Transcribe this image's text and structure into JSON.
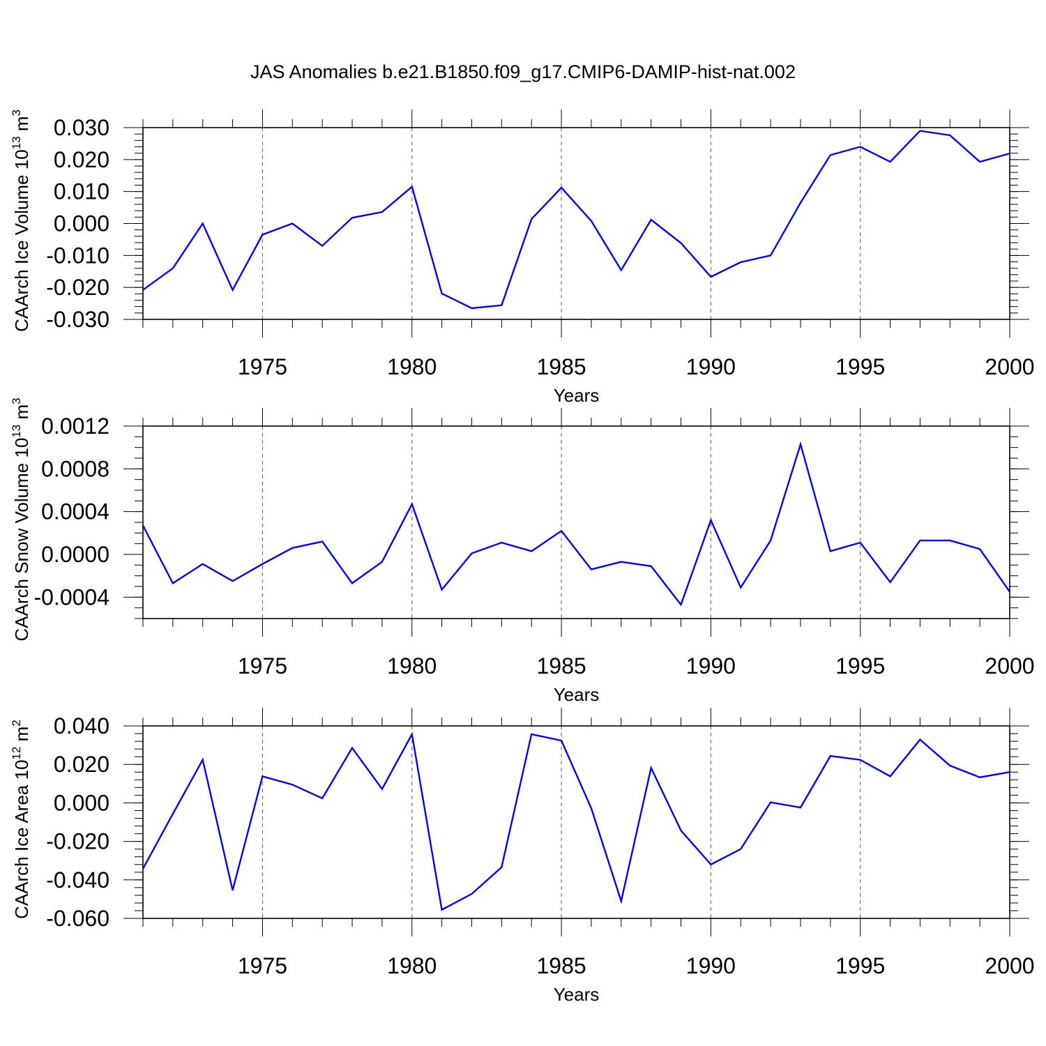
{
  "title": "JAS Anomalies b.e21.B1850.f09_g17.CMIP6-DAMIP-hist-nat.002",
  "line_color": "#0000ff",
  "chart_data": [
    {
      "type": "line",
      "id": "ice-volume",
      "ylabel_text": "CAArch Ice Volume 10",
      "ylabel_exp": "13",
      "ylabel_unit": " m",
      "ylabel_unit_exp": "3",
      "xlabel": "Years",
      "xlim": [
        1971,
        2000
      ],
      "ylim": [
        -0.03,
        0.03
      ],
      "xticks": [
        1975,
        1980,
        1985,
        1990,
        1995,
        2000
      ],
      "xtick_labels": [
        "1975",
        "1980",
        "1985",
        "1990",
        "1995",
        "2000"
      ],
      "yticks": [
        -0.03,
        -0.02,
        -0.01,
        0.0,
        0.01,
        0.02,
        0.03
      ],
      "ytick_labels": [
        "-0.030",
        "-0.020",
        "-0.010",
        "0.000",
        "0.010",
        "0.020",
        "0.030"
      ],
      "y_minor_step": 0.002,
      "x": [
        1971,
        1972,
        1973,
        1974,
        1975,
        1976,
        1977,
        1978,
        1979,
        1980,
        1981,
        1982,
        1983,
        1984,
        1985,
        1986,
        1987,
        1988,
        1989,
        1990,
        1991,
        1992,
        1993,
        1994,
        1995,
        1996,
        1997,
        1998,
        1999,
        2000
      ],
      "series": [
        {
          "name": "Ice Volume",
          "values": [
            -0.0208,
            -0.014,
            0.0,
            -0.0208,
            -0.0035,
            0.0,
            -0.007,
            0.0018,
            0.0036,
            0.0115,
            -0.0219,
            -0.0265,
            -0.0256,
            0.0014,
            0.0112,
            0.0008,
            -0.0146,
            0.0012,
            -0.0061,
            -0.0167,
            -0.0121,
            -0.01,
            0.0065,
            0.0214,
            0.024,
            0.0193,
            0.029,
            0.0276,
            0.0193,
            0.0219
          ]
        }
      ]
    },
    {
      "type": "line",
      "id": "snow-volume",
      "ylabel_text": "CAArch Snow Volume 10",
      "ylabel_exp": "13",
      "ylabel_unit": " m",
      "ylabel_unit_exp": "3",
      "xlabel": "Years",
      "xlim": [
        1971,
        2000
      ],
      "ylim": [
        -0.0006,
        0.0012
      ],
      "xticks": [
        1975,
        1980,
        1985,
        1990,
        1995,
        2000
      ],
      "xtick_labels": [
        "1975",
        "1980",
        "1985",
        "1990",
        "1995",
        "2000"
      ],
      "yticks": [
        -0.0004,
        0.0,
        0.0004,
        0.0008,
        0.0012
      ],
      "ytick_labels": [
        "-0.0004",
        "0.0000",
        "0.0004",
        "0.0008",
        "0.0012"
      ],
      "y_minor_step": 0.0001,
      "x": [
        1971,
        1972,
        1973,
        1974,
        1975,
        1976,
        1977,
        1978,
        1979,
        1980,
        1981,
        1982,
        1983,
        1984,
        1985,
        1986,
        1987,
        1988,
        1989,
        1990,
        1991,
        1992,
        1993,
        1994,
        1995,
        1996,
        1997,
        1998,
        1999,
        2000
      ],
      "series": [
        {
          "name": "Snow Volume",
          "values": [
            0.00027,
            -0.00027,
            -9e-05,
            -0.00025,
            -9e-05,
            6e-05,
            0.00012,
            -0.00027,
            -7e-05,
            0.00047,
            -0.00033,
            1e-05,
            0.00011,
            3e-05,
            0.00022,
            -0.00014,
            -7e-05,
            -0.00011,
            -0.00047,
            0.00032,
            -0.00031,
            0.00013,
            0.00103,
            3e-05,
            0.00011,
            -0.00026,
            0.00013,
            0.00013,
            5e-05,
            -0.00035
          ]
        }
      ]
    },
    {
      "type": "line",
      "id": "ice-area",
      "ylabel_text": "CAArch Ice Area 10",
      "ylabel_exp": "12",
      "ylabel_unit": " m",
      "ylabel_unit_exp": "2",
      "xlabel": "Years",
      "xlim": [
        1971,
        2000
      ],
      "ylim": [
        -0.06,
        0.04
      ],
      "xticks": [
        1975,
        1980,
        1985,
        1990,
        1995,
        2000
      ],
      "xtick_labels": [
        "1975",
        "1980",
        "1985",
        "1990",
        "1995",
        "2000"
      ],
      "yticks": [
        -0.06,
        -0.04,
        -0.02,
        0.0,
        0.02,
        0.04
      ],
      "ytick_labels": [
        "-0.060",
        "-0.040",
        "-0.020",
        "0.000",
        "0.020",
        "0.040"
      ],
      "y_minor_step": 0.004,
      "x": [
        1971,
        1972,
        1973,
        1974,
        1975,
        1976,
        1977,
        1978,
        1979,
        1980,
        1981,
        1982,
        1983,
        1984,
        1985,
        1986,
        1987,
        1988,
        1989,
        1990,
        1991,
        1992,
        1993,
        1994,
        1995,
        1996,
        1997,
        1998,
        1999,
        2000
      ],
      "series": [
        {
          "name": "Ice Area",
          "values": [
            -0.0342,
            -0.0057,
            0.0224,
            -0.0454,
            0.0138,
            0.0095,
            0.0024,
            0.0286,
            0.0072,
            0.0357,
            -0.0555,
            -0.0473,
            -0.0334,
            0.0357,
            0.0324,
            -0.0028,
            -0.051,
            0.0182,
            -0.0143,
            -0.032,
            -0.024,
            0.0003,
            -0.0024,
            0.0244,
            0.0224,
            0.0138,
            0.0329,
            0.0194,
            0.0133,
            0.016
          ]
        }
      ]
    }
  ]
}
